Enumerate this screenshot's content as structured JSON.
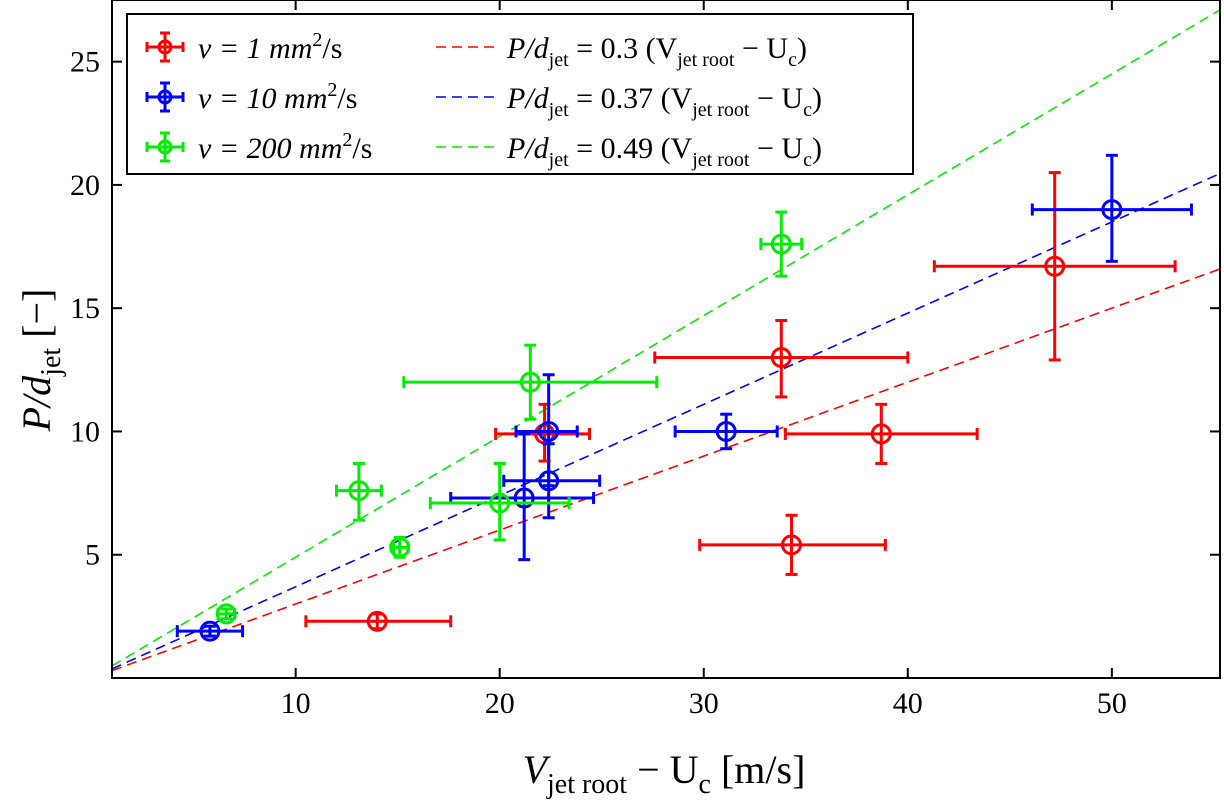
{
  "chart_data": {
    "type": "scatter",
    "xlabel": {
      "main": "V",
      "sub": "jet root",
      "rest": " − U",
      "sub2": "c",
      "units": " [m/s]"
    },
    "ylabel": {
      "main": "P/d",
      "sub": "jet",
      "units": "  [−]"
    },
    "xlim": [
      1,
      55.3
    ],
    "ylim": [
      0,
      27.5
    ],
    "xticks": [
      10,
      20,
      30,
      40,
      50
    ],
    "yticks": [
      5,
      10,
      15,
      20,
      25
    ],
    "xtick_labels": [
      "10",
      "20",
      "30",
      "40",
      "50"
    ],
    "ytick_labels": [
      "5",
      "10",
      "15",
      "20",
      "25"
    ],
    "series": [
      {
        "name": "ν = 1 mm²/s",
        "legend_nu": "ν = 1 mm",
        "legend_sup": "2",
        "legend_unit": "/s",
        "color": "#ff0000",
        "points": [
          {
            "x": 14.0,
            "y": 2.3,
            "xerr": [
              10.5,
              17.6
            ],
            "yerr": [
              2.0,
              2.6
            ]
          },
          {
            "x": 22.2,
            "y": 9.9,
            "xerr": [
              19.8,
              24.4
            ],
            "yerr": [
              8.8,
              11.1
            ]
          },
          {
            "x": 34.3,
            "y": 5.4,
            "xerr": [
              29.8,
              38.9
            ],
            "yerr": [
              4.2,
              6.6
            ]
          },
          {
            "x": 33.8,
            "y": 13.0,
            "xerr": [
              27.6,
              40.0
            ],
            "yerr": [
              11.4,
              14.5
            ]
          },
          {
            "x": 38.7,
            "y": 9.9,
            "xerr": [
              34.0,
              43.4
            ],
            "yerr": [
              8.7,
              11.1
            ]
          },
          {
            "x": 47.2,
            "y": 16.7,
            "xerr": [
              41.3,
              53.1
            ],
            "yerr": [
              12.9,
              20.5
            ]
          }
        ],
        "fit": {
          "label": "P/d",
          "sub": "jet",
          "eq": " = 0.3 (V",
          "sub2": "jet root",
          "mid": " − U",
          "sub3": "c",
          "end": ")",
          "slope": 0.3
        }
      },
      {
        "name": "ν = 10 mm²/s",
        "legend_nu": "ν = 10 mm",
        "legend_sup": "2",
        "legend_unit": "/s",
        "color": "#0000ff",
        "points": [
          {
            "x": 5.8,
            "y": 1.9,
            "xerr": [
              4.2,
              7.4
            ],
            "yerr": [
              1.7,
              2.1
            ]
          },
          {
            "x": 21.2,
            "y": 7.3,
            "xerr": [
              17.6,
              24.6
            ],
            "yerr": [
              4.8,
              9.9
            ]
          },
          {
            "x": 22.4,
            "y": 8.0,
            "xerr": [
              20.2,
              24.9
            ],
            "yerr": [
              6.5,
              9.5
            ]
          },
          {
            "x": 22.4,
            "y": 10.0,
            "xerr": [
              20.8,
              23.8
            ],
            "yerr": [
              7.8,
              12.3
            ]
          },
          {
            "x": 31.1,
            "y": 10.0,
            "xerr": [
              28.6,
              33.6
            ],
            "yerr": [
              9.3,
              10.7
            ]
          },
          {
            "x": 50.0,
            "y": 19.0,
            "xerr": [
              46.1,
              53.9
            ],
            "yerr": [
              16.9,
              21.2
            ]
          }
        ],
        "fit": {
          "label": "P/d",
          "sub": "jet",
          "eq": " = 0.37 (V",
          "sub2": "jet root",
          "mid": " − U",
          "sub3": "c",
          "end": ")",
          "slope": 0.37
        }
      },
      {
        "name": "ν = 200 mm²/s",
        "legend_nu": "ν = 200 mm",
        "legend_sup": "2",
        "legend_unit": "/s",
        "color": "#00ee00",
        "points": [
          {
            "x": 6.6,
            "y": 2.6,
            "xerr": [
              6.2,
              7.0
            ],
            "yerr": [
              2.4,
              2.8
            ]
          },
          {
            "x": 15.1,
            "y": 5.3,
            "xerr": [
              14.8,
              15.5
            ],
            "yerr": [
              4.9,
              5.7
            ]
          },
          {
            "x": 13.1,
            "y": 7.6,
            "xerr": [
              12.0,
              14.2
            ],
            "yerr": [
              6.4,
              8.7
            ]
          },
          {
            "x": 20.0,
            "y": 7.1,
            "xerr": [
              16.6,
              23.4
            ],
            "yerr": [
              5.6,
              8.7
            ]
          },
          {
            "x": 21.5,
            "y": 12.0,
            "xerr": [
              15.3,
              27.7
            ],
            "yerr": [
              10.5,
              13.5
            ]
          },
          {
            "x": 33.8,
            "y": 17.6,
            "xerr": [
              32.8,
              34.8
            ],
            "yerr": [
              16.3,
              18.9
            ]
          }
        ],
        "fit": {
          "label": "P/d",
          "sub": "jet",
          "eq": " = 0.49 (V",
          "sub2": "jet root",
          "mid": " − U",
          "sub3": "c",
          "end": ")",
          "slope": 0.49
        }
      }
    ],
    "legend_position": "top-left"
  }
}
